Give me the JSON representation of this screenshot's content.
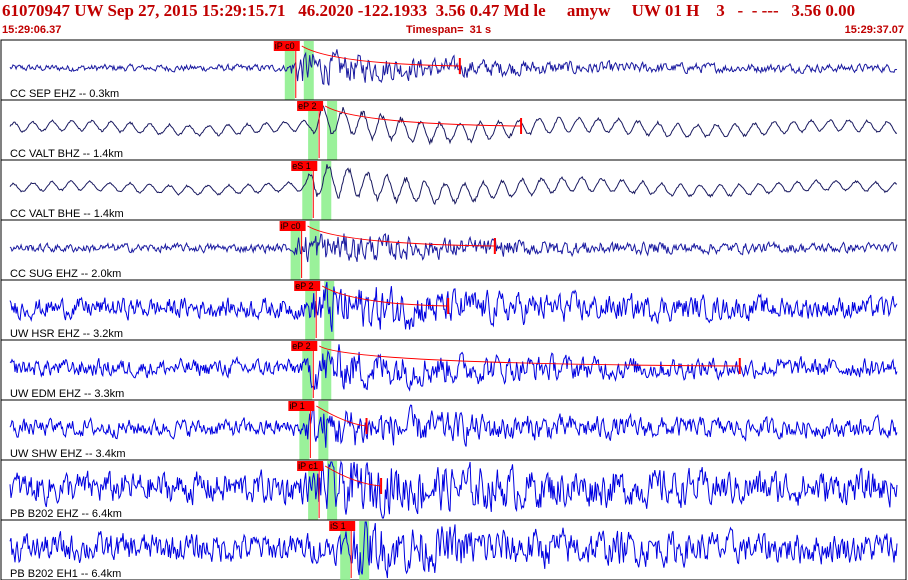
{
  "header": {
    "title": "61070947 UW Sep 27, 2015 15:29:15.71   46.2020 -122.1933  3.56 0.47 Md le     amyw     UW 01 H    3   -  - ---   3.56 0.00",
    "start_time": "15:29:06.37",
    "timespan": "Timespan=  31 s",
    "end_time": "15:29:37.07"
  },
  "colors": {
    "background": "#ffffff",
    "header_text": "#c00000",
    "trace_short_period": "#1a1aa0",
    "trace_broadband": "#1a1a60",
    "trace_strong": "#0000e0",
    "pick_box": "#ff0000",
    "pick_window": "#88ee88",
    "coda_fit": "#ff0000",
    "panel_border": "#000000"
  },
  "chart_data": {
    "type": "line",
    "title": "",
    "time_axis": {
      "start": "15:29:06.37",
      "end": "15:29:37.07",
      "span_s": 31
    },
    "channels": [
      {
        "label": "CC SEP EHZ -- 0.3km",
        "pick": "iP c0",
        "color": "#1a1aa0",
        "amp": 0.55,
        "onset_s": 9.8,
        "noise": 0.12,
        "period": "short",
        "coda_end_s": 15.7
      },
      {
        "label": "CC VALT BHZ -- 1.4km",
        "pick": "eP 2",
        "color": "#1a1a60",
        "amp": 0.5,
        "onset_s": 10.6,
        "noise": 0.25,
        "period": "long",
        "coda_end_s": 17.8
      },
      {
        "label": "CC VALT BHE -- 1.4km",
        "pick": "eS 1",
        "color": "#1a1a60",
        "amp": 0.6,
        "onset_s": 10.4,
        "noise": 0.22,
        "period": "long",
        "coda_end_s": 0
      },
      {
        "label": "CC SUG EHZ -- 2.0km",
        "pick": "iP c0",
        "color": "#1a1aa0",
        "amp": 0.5,
        "onset_s": 10.0,
        "noise": 0.15,
        "period": "short",
        "coda_end_s": 16.9
      },
      {
        "label": "UW HSR EHZ -- 3.2km",
        "pick": "eP 2",
        "color": "#0000e0",
        "amp": 0.6,
        "onset_s": 10.5,
        "noise": 0.35,
        "period": "short",
        "coda_end_s": 15.3
      },
      {
        "label": "UW EDM EHZ -- 3.3km",
        "pick": "eP 2",
        "color": "#0000e0",
        "amp": 0.55,
        "onset_s": 10.4,
        "noise": 0.3,
        "period": "short",
        "coda_end_s": 25.3
      },
      {
        "label": "UW SHW EHZ -- 3.4km",
        "pick": "iP 1",
        "color": "#0000e0",
        "amp": 0.55,
        "onset_s": 10.3,
        "noise": 0.3,
        "period": "short",
        "coda_end_s": 12.5
      },
      {
        "label": "PB B202 EHZ -- 6.4km",
        "pick": "iP c1",
        "color": "#0000e0",
        "amp": 0.55,
        "onset_s": 10.6,
        "noise": 0.55,
        "period": "short",
        "coda_end_s": 13.0
      },
      {
        "label": "PB B202 EH1 -- 6.4km",
        "pick": "iS 1",
        "color": "#0000e0",
        "amp": 0.5,
        "onset_s": 11.7,
        "noise": 0.5,
        "period": "short",
        "coda_end_s": 0
      }
    ]
  }
}
